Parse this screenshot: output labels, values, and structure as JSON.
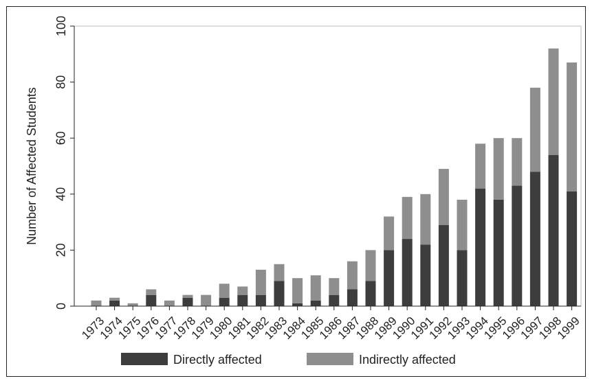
{
  "chart_data": {
    "type": "bar",
    "stacked": true,
    "categories": [
      "1973",
      "1974",
      "1975",
      "1976",
      "1977",
      "1978",
      "1979",
      "1980",
      "1981",
      "1982",
      "1983",
      "1984",
      "1985",
      "1986",
      "1987",
      "1988",
      "1989",
      "1990",
      "1991",
      "1992",
      "1993",
      "1994",
      "1995",
      "1996",
      "1997",
      "1998",
      "1999"
    ],
    "series": [
      {
        "name": "Directly affected",
        "color": "#3d3d3d",
        "values": [
          0,
          2,
          0,
          4,
          0,
          3,
          0,
          3,
          4,
          4,
          9,
          1,
          2,
          4,
          6,
          9,
          20,
          24,
          22,
          29,
          20,
          42,
          38,
          43,
          48,
          54,
          41
        ]
      },
      {
        "name": "Indirectly affected",
        "color": "#8e8e8e",
        "values": [
          2,
          1,
          1,
          2,
          2,
          1,
          4,
          5,
          3,
          9,
          6,
          9,
          9,
          6,
          10,
          11,
          12,
          15,
          18,
          20,
          18,
          16,
          22,
          17,
          30,
          38,
          46
        ]
      }
    ],
    "ylabel": "Number of Affected Students",
    "xlabel": "",
    "title": "",
    "ylim": [
      0,
      100
    ],
    "yticks": [
      0,
      20,
      40,
      60,
      80,
      100
    ],
    "legend_position": "bottom",
    "grid": false
  }
}
